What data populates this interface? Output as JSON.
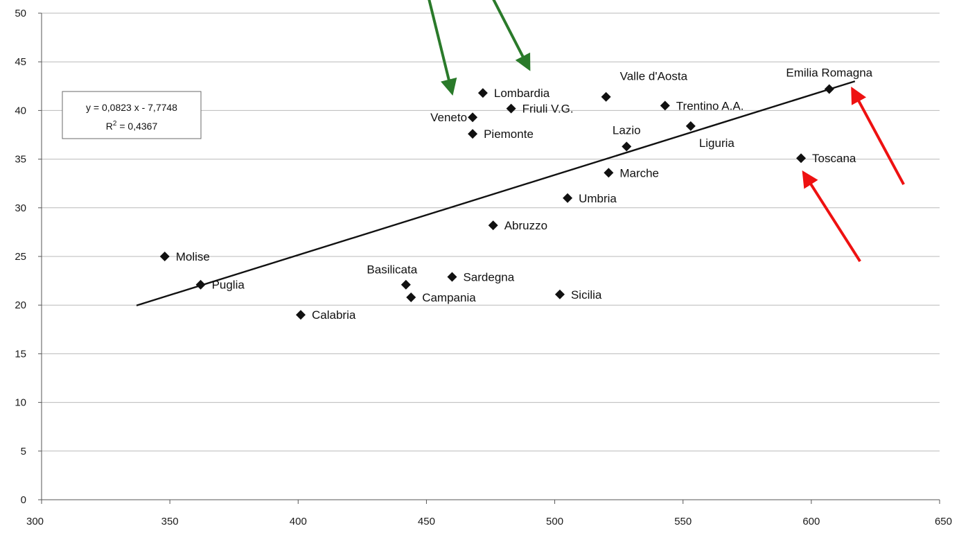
{
  "chart_data": {
    "type": "scatter",
    "xlim": [
      300,
      650
    ],
    "ylim": [
      0,
      50
    ],
    "x_ticks": [
      300,
      350,
      400,
      450,
      500,
      550,
      600,
      650
    ],
    "y_ticks": [
      0,
      5,
      10,
      15,
      20,
      25,
      30,
      35,
      40,
      45,
      50
    ],
    "grid": "horizontal",
    "points": [
      {
        "label": "Molise",
        "x": 348,
        "y": 25.0,
        "label_pos": "right"
      },
      {
        "label": "Puglia",
        "x": 362,
        "y": 22.1,
        "label_pos": "right"
      },
      {
        "label": "Calabria",
        "x": 401,
        "y": 19.0,
        "label_pos": "right"
      },
      {
        "label": "Basilicata",
        "x": 442,
        "y": 22.1,
        "label_pos": "above-left"
      },
      {
        "label": "Campania",
        "x": 444,
        "y": 20.8,
        "label_pos": "right"
      },
      {
        "label": "Sardegna",
        "x": 460,
        "y": 22.9,
        "label_pos": "right"
      },
      {
        "label": "Sicilia",
        "x": 502,
        "y": 21.1,
        "label_pos": "right"
      },
      {
        "label": "Abruzzo",
        "x": 476,
        "y": 28.2,
        "label_pos": "right"
      },
      {
        "label": "Umbria",
        "x": 505,
        "y": 31.0,
        "label_pos": "right"
      },
      {
        "label": "Marche",
        "x": 521,
        "y": 33.6,
        "label_pos": "right"
      },
      {
        "label": "Lazio",
        "x": 528,
        "y": 36.3,
        "label_pos": "above"
      },
      {
        "label": "Liguria",
        "x": 553,
        "y": 38.4,
        "label_pos": "below-right"
      },
      {
        "label": "Toscana",
        "x": 596,
        "y": 35.1,
        "label_pos": "right"
      },
      {
        "label": "Piemonte",
        "x": 468,
        "y": 37.6,
        "label_pos": "right"
      },
      {
        "label": "Veneto",
        "x": 468,
        "y": 39.3,
        "label_pos": "left"
      },
      {
        "label": "Lombardia",
        "x": 472,
        "y": 41.8,
        "label_pos": "right"
      },
      {
        "label": "Friuli V.G.",
        "x": 483,
        "y": 40.2,
        "label_pos": "right"
      },
      {
        "label": "Valle d'Aosta",
        "x": 520,
        "y": 41.4,
        "label_pos": "above-right"
      },
      {
        "label": "Trentino A.A.",
        "x": 543,
        "y": 40.5,
        "label_pos": "right"
      },
      {
        "label": "Emilia Romagna",
        "x": 607,
        "y": 42.2,
        "label_pos": "above"
      }
    ],
    "trendline": {
      "slope": 0.0823,
      "intercept": -7.7748,
      "x_range": [
        337,
        617
      ],
      "equation": "y = 0,0823 x - 7,7748",
      "r2": "R",
      "r2_sup": "2",
      "r2_value": " = 0,4367"
    },
    "annotations": [
      {
        "type": "arrow",
        "color": "#2a7a2a",
        "target": "Veneto",
        "from": [
          450,
          52.5
        ],
        "to": [
          460,
          41.8
        ]
      },
      {
        "type": "arrow",
        "color": "#2a7a2a",
        "target": "Lombardia",
        "from": [
          474,
          52.5
        ],
        "to": [
          490,
          44.3
        ]
      },
      {
        "type": "arrow",
        "color": "#ee1111",
        "target": "Emilia Romagna",
        "from": [
          636,
          32.4
        ],
        "to": [
          616,
          42.2
        ]
      },
      {
        "type": "arrow",
        "color": "#ee1111",
        "target": "Toscana",
        "from": [
          619,
          24.5
        ],
        "to": [
          597,
          33.6
        ]
      }
    ]
  }
}
